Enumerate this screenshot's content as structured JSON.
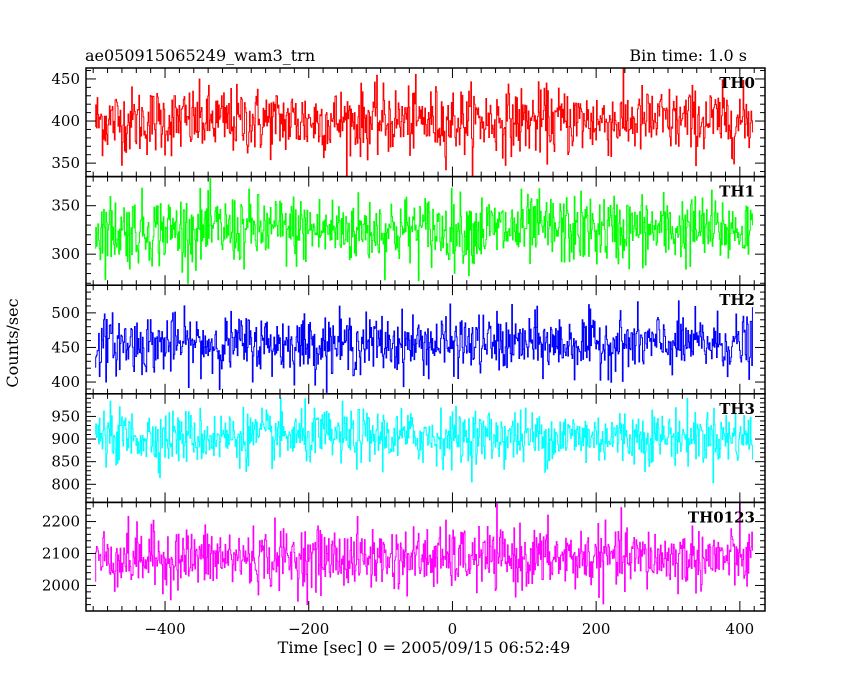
{
  "header": {
    "title": "ae050915065249_wam3_trn",
    "bin_time": "Bin time: 1.0 s"
  },
  "chart_data": {
    "type": "line",
    "title": "ae050915065249_wam3_trn",
    "xlabel": "Time [sec] 0 = 2005/09/15 06:52:49",
    "ylabel": "Counts/sec",
    "xlim": [
      -510,
      435
    ],
    "x_start": -497,
    "x_end": 418,
    "x_step": 1.0,
    "xticks": [
      -400,
      -200,
      0,
      200,
      400
    ],
    "x_tick_labels": [
      "−400",
      "−200",
      "0",
      "200",
      "400"
    ],
    "grid": false,
    "legend": "none",
    "series": [
      {
        "name": "TH0",
        "color": "#ff0000",
        "ylim": [
          334,
          463
        ],
        "yticks": [
          350,
          400,
          450
        ],
        "mean": 400,
        "sigma": 20,
        "summary": {
          "mean": 400,
          "min": 335,
          "max": 462
        }
      },
      {
        "name": "TH1",
        "color": "#00ff00",
        "ylim": [
          268,
          380
        ],
        "yticks": [
          300,
          350
        ],
        "mean": 325,
        "sigma": 18,
        "summary": {
          "mean": 325,
          "min": 270,
          "max": 378
        }
      },
      {
        "name": "TH2",
        "color": "#0000ff",
        "ylim": [
          383,
          540
        ],
        "yticks": [
          400,
          450,
          500
        ],
        "mean": 455,
        "sigma": 21,
        "summary": {
          "mean": 455,
          "min": 385,
          "max": 538
        }
      },
      {
        "name": "TH3",
        "color": "#00ffff",
        "ylim": [
          760,
          1000
        ],
        "yticks": [
          800,
          850,
          900,
          950
        ],
        "mean": 905,
        "sigma": 30,
        "summary": {
          "mean": 905,
          "min": 762,
          "max": 998
        }
      },
      {
        "name": "TH0123",
        "color": "#ff00ff",
        "ylim": [
          1920,
          2260
        ],
        "yticks": [
          2000,
          2100,
          2200
        ],
        "mean": 2085,
        "sigma": 48,
        "summary": {
          "mean": 2085,
          "min": 1922,
          "max": 2258
        }
      }
    ]
  }
}
